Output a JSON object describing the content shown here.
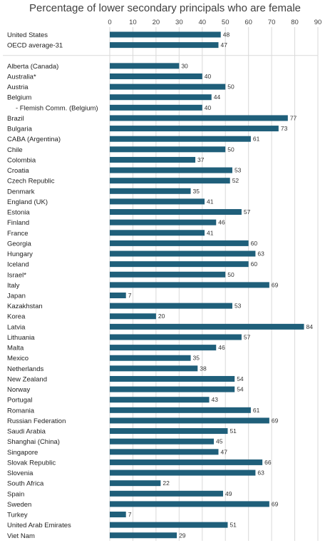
{
  "chart_data": {
    "type": "bar",
    "orientation": "horizontal",
    "title": "Percentage of lower secondary principals who are female",
    "xlim": [
      0,
      90
    ],
    "xticks": [
      0,
      10,
      20,
      30,
      40,
      50,
      60,
      70,
      80,
      90
    ],
    "grid": true,
    "bar_color": "#1f5f7a",
    "groups": [
      {
        "categories": [
          "United States",
          "OECD average-31"
        ],
        "values": [
          48,
          47
        ]
      },
      {
        "categories": [
          "Alberta (Canada)",
          "Australia*",
          "Austria",
          "Belgium",
          "- Flemish Comm. (Belgium)",
          "Brazil",
          "Bulgaria",
          "CABA (Argentina)",
          "Chile",
          "Colombia",
          "Croatia",
          "Czech Republic",
          "Denmark",
          "England (UK)",
          "Estonia",
          "Finland",
          "France",
          "Georgia",
          "Hungary",
          "Iceland",
          "Israel*",
          "Italy",
          "Japan",
          "Kazakhstan",
          "Korea",
          "Latvia",
          "Lithuania",
          "Malta",
          "Mexico",
          "Netherlands",
          "New Zealand",
          "Norway",
          "Portugal",
          "Romania",
          "Russian Federation",
          "Saudi Arabia",
          "Shanghai (China)",
          "Singapore",
          "Slovak Republic",
          "Slovenia",
          "South Africa",
          "Spain",
          "Sweden",
          "Turkey",
          "United Arab Emirates",
          "Viet Nam"
        ],
        "values": [
          30,
          40,
          50,
          44,
          40,
          77,
          73,
          61,
          50,
          37,
          53,
          52,
          35,
          41,
          57,
          46,
          41,
          60,
          63,
          60,
          50,
          69,
          7,
          53,
          20,
          84,
          57,
          46,
          35,
          38,
          54,
          54,
          43,
          61,
          69,
          51,
          45,
          47,
          66,
          63,
          22,
          49,
          69,
          7,
          51,
          29
        ]
      }
    ]
  }
}
